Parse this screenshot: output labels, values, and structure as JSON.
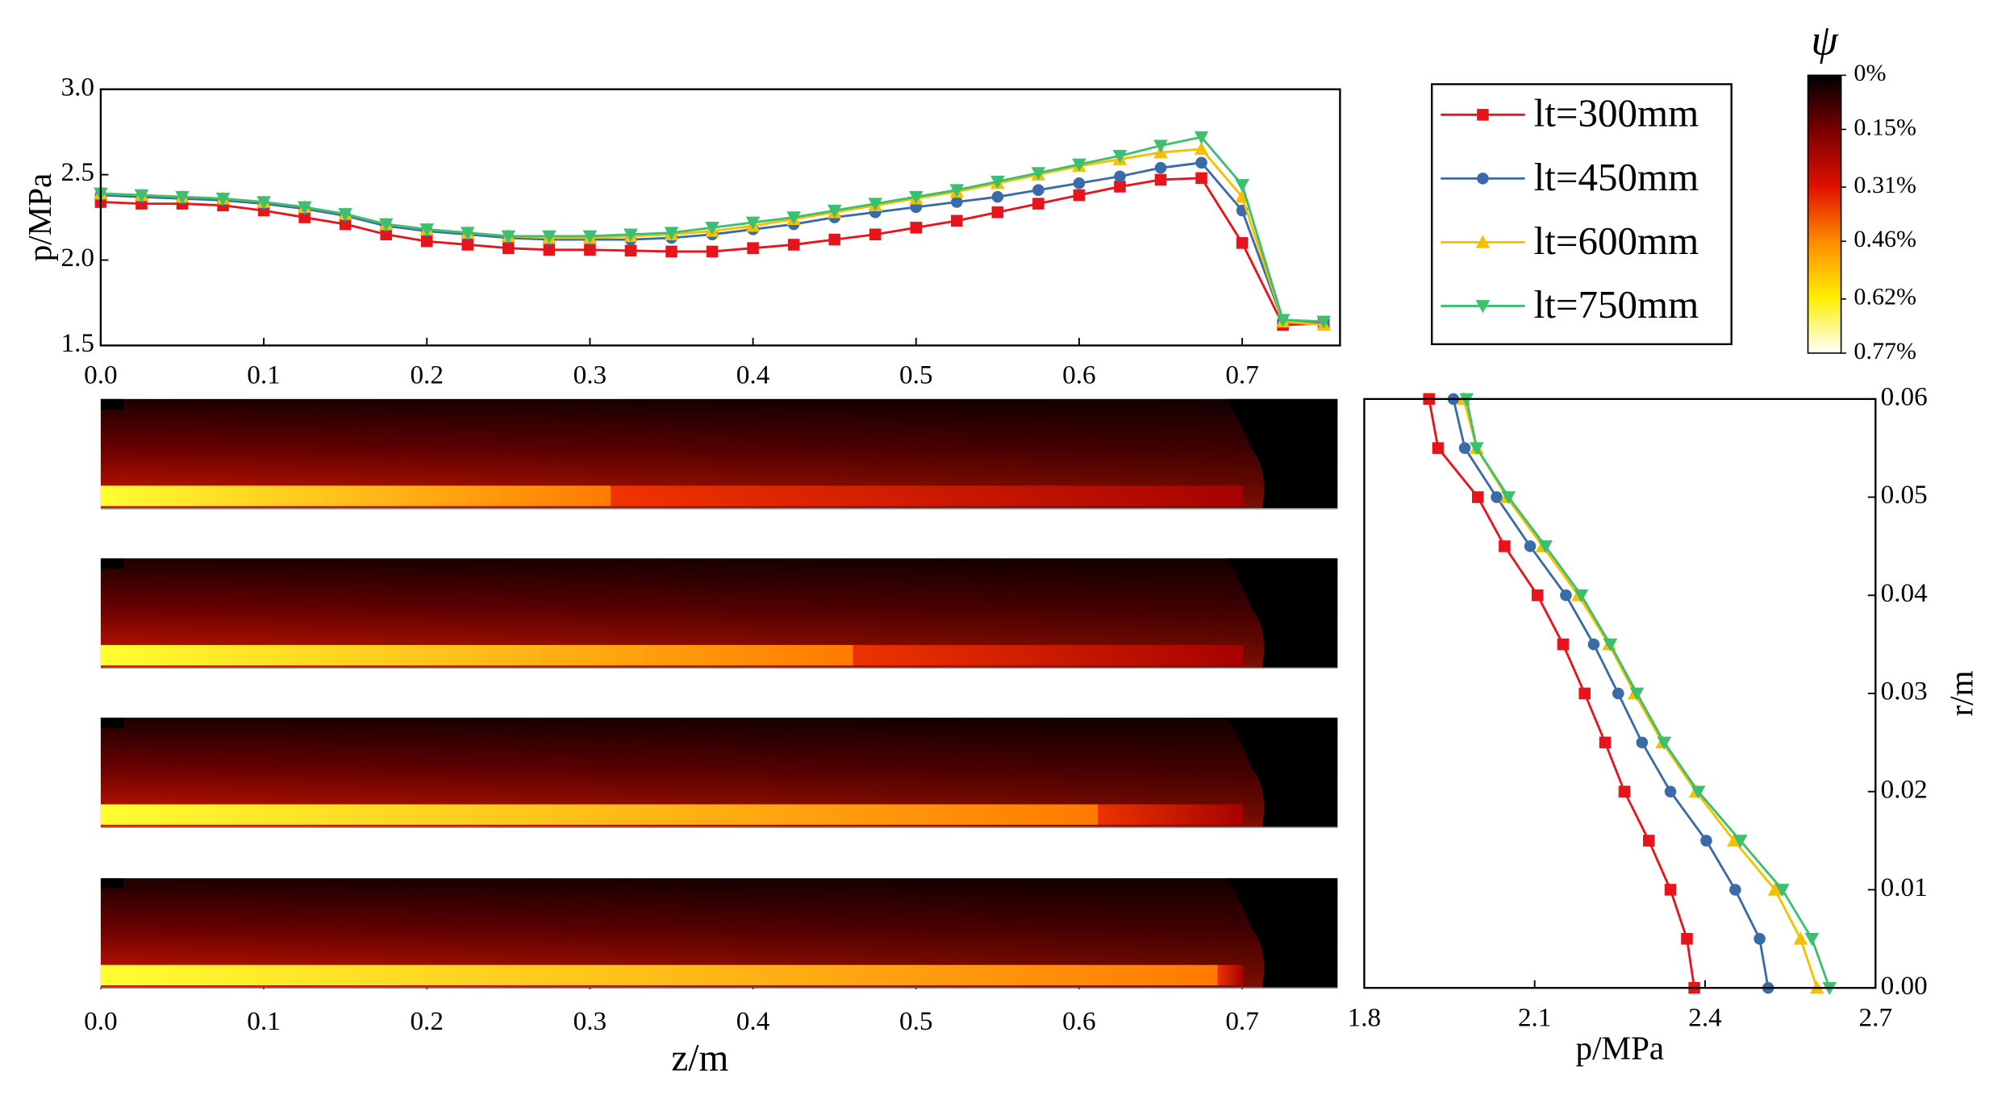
{
  "chart_data": [
    {
      "type": "line",
      "ylabel": "p/MPa",
      "legend": "right",
      "x": [
        0,
        0.025,
        0.05,
        0.075,
        0.1,
        0.125,
        0.15,
        0.175,
        0.2,
        0.225,
        0.25,
        0.275,
        0.3,
        0.325,
        0.35,
        0.375,
        0.4,
        0.425,
        0.45,
        0.475,
        0.5,
        0.525,
        0.55,
        0.575,
        0.6,
        0.625,
        0.65,
        0.675,
        0.7,
        0.725,
        0.75
      ],
      "xlim": [
        0,
        0.76
      ],
      "xticks": [
        {
          "value": 0,
          "label": "0.0"
        },
        0.1,
        0.2,
        0.3,
        0.4,
        0.5,
        0.6,
        0.7
      ],
      "ylim": [
        1.5,
        3.0
      ],
      "yticks": [
        1.5,
        {
          "value": 2,
          "label": "2.0"
        },
        2.5,
        {
          "value": 3,
          "label": "3.0"
        }
      ],
      "series": [
        {
          "name": "lt=300mm",
          "color": "#e8141c",
          "marker": "square",
          "values": [
            2.34,
            2.33,
            2.33,
            2.32,
            2.29,
            2.25,
            2.21,
            2.15,
            2.11,
            2.09,
            2.07,
            2.06,
            2.06,
            2.055,
            2.05,
            2.05,
            2.07,
            2.09,
            2.12,
            2.15,
            2.19,
            2.23,
            2.28,
            2.33,
            2.38,
            2.43,
            2.47,
            2.48,
            2.1,
            1.62,
            1.63
          ]
        },
        {
          "name": "lt=450mm",
          "color": "#3a6aa8",
          "marker": "circle",
          "values": [
            2.38,
            2.37,
            2.36,
            2.35,
            2.33,
            2.3,
            2.26,
            2.2,
            2.17,
            2.15,
            2.13,
            2.12,
            2.12,
            2.12,
            2.13,
            2.15,
            2.18,
            2.21,
            2.25,
            2.28,
            2.31,
            2.34,
            2.37,
            2.41,
            2.45,
            2.49,
            2.54,
            2.57,
            2.29,
            1.64,
            1.63
          ]
        },
        {
          "name": "lt=600mm",
          "color": "#f5c000",
          "marker": "triangle-up",
          "values": [
            2.39,
            2.38,
            2.37,
            2.36,
            2.34,
            2.31,
            2.27,
            2.21,
            2.18,
            2.16,
            2.14,
            2.13,
            2.13,
            2.14,
            2.15,
            2.17,
            2.2,
            2.24,
            2.28,
            2.32,
            2.36,
            2.4,
            2.45,
            2.5,
            2.55,
            2.59,
            2.63,
            2.65,
            2.37,
            1.64,
            1.62
          ]
        },
        {
          "name": "lt=750mm",
          "color": "#3cbf6e",
          "marker": "triangle-down",
          "values": [
            2.39,
            2.38,
            2.37,
            2.36,
            2.34,
            2.31,
            2.27,
            2.21,
            2.18,
            2.16,
            2.14,
            2.14,
            2.14,
            2.15,
            2.16,
            2.19,
            2.22,
            2.25,
            2.29,
            2.33,
            2.37,
            2.41,
            2.46,
            2.51,
            2.56,
            2.61,
            2.67,
            2.72,
            2.44,
            1.65,
            1.64
          ]
        }
      ]
    },
    {
      "type": "line",
      "xlabel": "p/MPa",
      "ylabel": "r/m",
      "y_axis_side": "right",
      "y": [
        0,
        0.005,
        0.01,
        0.015,
        0.02,
        0.025,
        0.03,
        0.035,
        0.04,
        0.045,
        0.05,
        0.055,
        0.06
      ],
      "xlim": [
        1.8,
        2.7
      ],
      "xticks": [
        1.8,
        2.1,
        2.4,
        2.7
      ],
      "ylim": [
        0,
        0.06
      ],
      "yticks": [
        {
          "value": 0,
          "label": "0.00"
        },
        0.01,
        0.02,
        0.03,
        0.04,
        0.05,
        0.06
      ],
      "series": [
        {
          "color": "#e8141c",
          "marker": "square",
          "values": [
            2.381,
            2.368,
            2.339,
            2.301,
            2.258,
            2.224,
            2.188,
            2.15,
            2.105,
            2.047,
            2.0,
            1.93,
            1.914
          ]
        },
        {
          "color": "#3a6aa8",
          "marker": "circle",
          "values": [
            2.511,
            2.496,
            2.453,
            2.402,
            2.339,
            2.289,
            2.247,
            2.204,
            2.155,
            2.092,
            2.033,
            1.977,
            1.957
          ]
        },
        {
          "color": "#f5c000",
          "marker": "triangle-up",
          "values": [
            2.597,
            2.568,
            2.523,
            2.451,
            2.384,
            2.325,
            2.276,
            2.231,
            2.177,
            2.114,
            2.051,
            1.998,
            1.975
          ]
        },
        {
          "color": "#3cbf6e",
          "marker": "triangle-down",
          "values": [
            2.619,
            2.588,
            2.536,
            2.462,
            2.388,
            2.328,
            2.28,
            2.233,
            2.182,
            2.119,
            2.054,
            1.998,
            1.98
          ]
        }
      ]
    },
    {
      "type": "contour",
      "xlabel": "z/m",
      "xlim": [
        0,
        0.76
      ],
      "xticks": [
        {
          "value": 0,
          "label": "0.0"
        },
        0.1,
        0.2,
        0.3,
        0.4,
        0.5,
        0.6,
        0.7
      ]
    },
    {
      "type": "colorbar",
      "title": "ψ",
      "clim": [
        0,
        0.77
      ],
      "colors": [
        "#000000",
        "#7a0000",
        "#e01000",
        "#ff8c00",
        "#ffee00",
        "#ffffff"
      ],
      "ticks": [
        {
          "value": 0,
          "label": "0%"
        },
        {
          "value": 0.15,
          "label": "0.15%"
        },
        {
          "value": 0.31,
          "label": "0.31%"
        },
        {
          "value": 0.46,
          "label": "0.46%"
        },
        {
          "value": 0.62,
          "label": "0.62%"
        },
        {
          "value": 0.77,
          "label": "0.77%"
        }
      ]
    }
  ]
}
